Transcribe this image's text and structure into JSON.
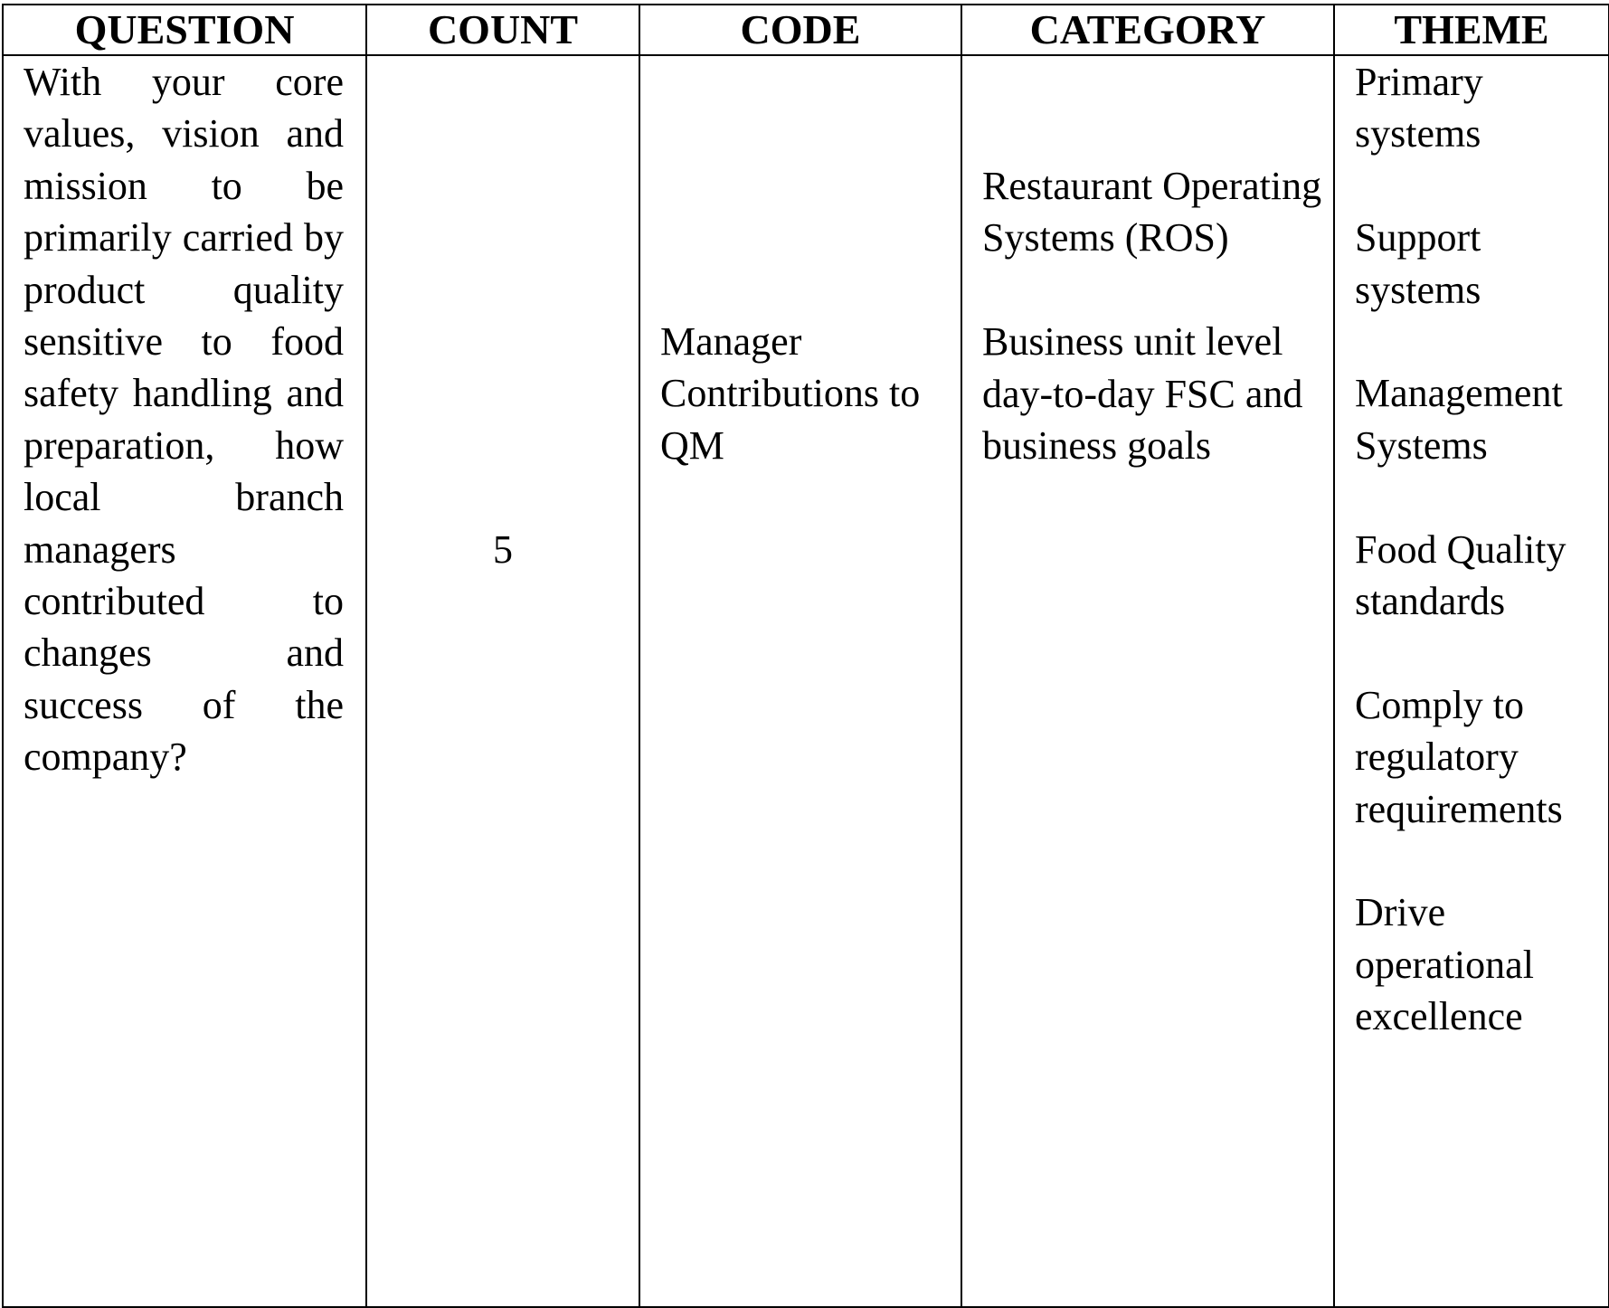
{
  "headers": {
    "question": "QUESTION",
    "count": "COUNT",
    "code": "CODE",
    "category": "CATEGORY",
    "theme": "THEME"
  },
  "row": {
    "question": "With your core values, vision and mission to be primarily carried by product quality sensitive to food safety handling and preparation, how local branch managers contributed to changes and success of the company?",
    "count": "5",
    "code": "Manager Contributions to QM",
    "categories": [
      "Restaurant Operating Systems (ROS)",
      "Business unit level day-to-day FSC and business goals"
    ],
    "themes": [
      "Primary systems",
      "Support systems",
      "Management Systems",
      "Food Quality standards",
      "Comply to regulatory requirements",
      "Drive operational excellence"
    ]
  }
}
